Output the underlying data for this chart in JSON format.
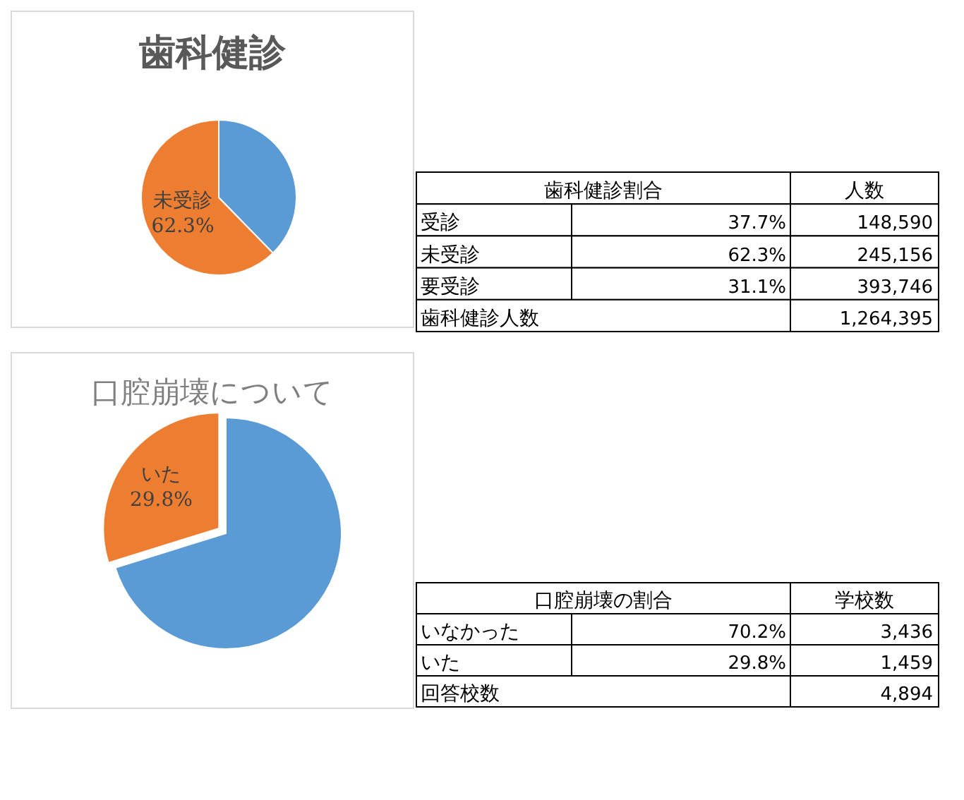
{
  "chart_data": [
    {
      "type": "pie",
      "title": "歯科健診",
      "categories": [
        null,
        "未受診"
      ],
      "values": [
        37.7,
        62.3
      ],
      "colors": [
        "#5b9bd5",
        "#ed7d31"
      ],
      "value_labels": [
        null,
        "62.3%"
      ],
      "annotations": [
        "歯科健診割合",
        "人数",
        "受診",
        "37.7%",
        "148,590",
        "未受診",
        "62.3%",
        "245,156",
        "要受診",
        "31.1%",
        "393,746",
        "歯科健診人数",
        "1,264,395"
      ]
    },
    {
      "type": "pie",
      "title": "口腔崩壊について",
      "categories": [
        null,
        "いた"
      ],
      "values": [
        70.2,
        29.8
      ],
      "colors": [
        "#5b9bd5",
        "#ed7d31"
      ],
      "value_labels": [
        null,
        "29.8%"
      ],
      "annotations": [
        "口腔崩壊の割合",
        "学校数",
        "いなかった",
        "70.2%",
        "3,436",
        "いた",
        "29.8%",
        "1,459",
        "回答校数",
        "4,894"
      ]
    }
  ]
}
